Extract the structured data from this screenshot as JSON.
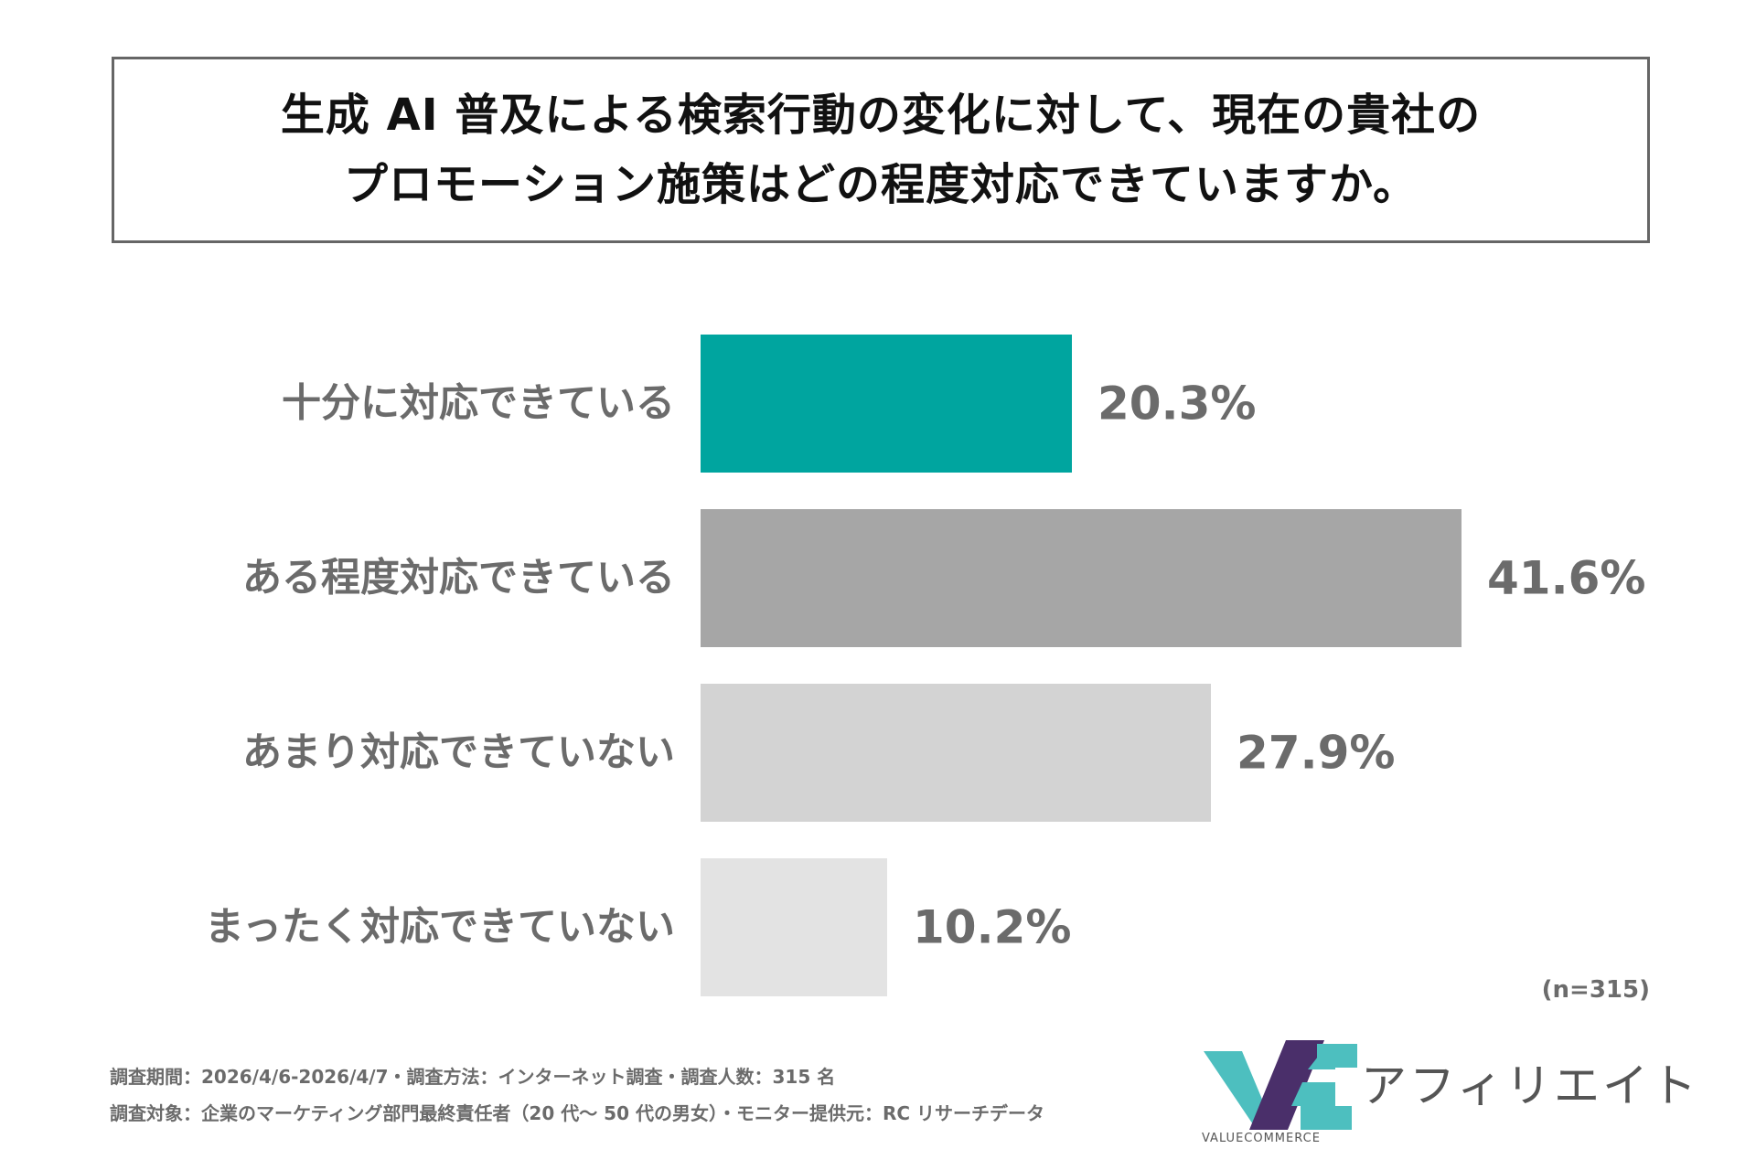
{
  "title": {
    "line1": "生成 AI 普及による検索行動の変化に対して、現在の貴社の",
    "line2": "プロモーション施策はどの程度対応できていますか。"
  },
  "chart_data": {
    "type": "bar",
    "orientation": "horizontal",
    "categories": [
      "十分に対応できている",
      "ある程度対応できている",
      "あまり対応できていない",
      "まったく対応できていない"
    ],
    "values": [
      20.3,
      41.6,
      27.9,
      10.2
    ],
    "value_labels": [
      "20.3%",
      "41.6%",
      "27.9%",
      "10.2%"
    ],
    "colors": [
      "#00a59f",
      "#a6a6a6",
      "#d3d3d3",
      "#e3e3e3"
    ],
    "xlim": [
      0,
      41.6
    ],
    "grid": false
  },
  "sample_size": "(n=315)",
  "footnotes": {
    "line1": "調査期間：2026/4/6-2026/4/7・調査方法：インターネット調査・調査人数：315 名",
    "line2": "調査対象：企業のマーケティング部門最終責任者（20 代～ 50 代の男女）・モニター提供元：RC リサーチデータ"
  },
  "logo": {
    "name": "アフィリエイト",
    "brand": "VALUECOMMERCE",
    "colors": {
      "teal": "#4dbfbf",
      "purple": "#4a2f6a"
    }
  }
}
